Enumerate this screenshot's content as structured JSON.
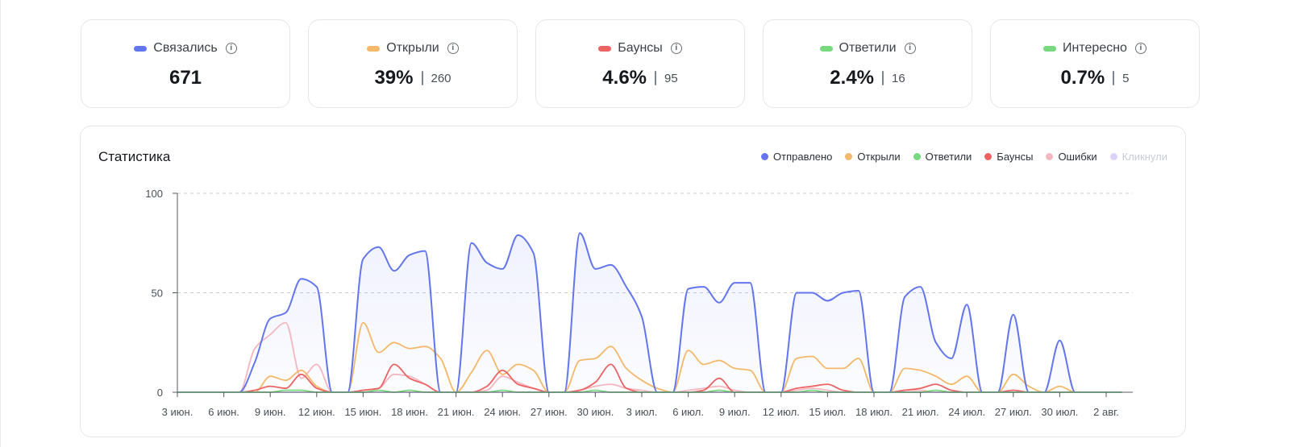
{
  "kpis": [
    {
      "label": "Связались",
      "color": "#6376ee",
      "value": "671",
      "count": ""
    },
    {
      "label": "Открыли",
      "color": "#f3b86a",
      "value": "39%",
      "count": "260"
    },
    {
      "label": "Баунсы",
      "color": "#ec6363",
      "value": "4.6%",
      "count": "95"
    },
    {
      "label": "Ответили",
      "color": "#78d97f",
      "value": "2.4%",
      "count": "16"
    },
    {
      "label": "Интересно",
      "color": "#78d97f",
      "value": "0.7%",
      "count": "5"
    }
  ],
  "info_glyph": "i",
  "chart_data": {
    "type": "area",
    "title": "Статистика",
    "ylim": [
      0,
      100
    ],
    "yticks": [
      "0",
      "50",
      "100"
    ],
    "grid": "dashed horizontal",
    "legend_position": "top-right",
    "x_labels": [
      "3 июн.",
      "6 июн.",
      "9 июн.",
      "12 июн.",
      "15 июн.",
      "18 июн.",
      "21 июн.",
      "24 июн.",
      "27 июн.",
      "30 июн.",
      "3 июл.",
      "6 июл.",
      "9 июл.",
      "12 июл.",
      "15 июл.",
      "18 июл.",
      "21 июл.",
      "24 июл.",
      "27 июл.",
      "30 июл.",
      "2 авг."
    ],
    "series": [
      {
        "name": "Отправлено",
        "color": "#6376ee",
        "fill": true,
        "values": [
          0,
          0,
          0,
          0,
          0,
          15,
          37,
          40,
          57,
          53,
          0,
          0,
          67,
          73,
          61,
          69,
          71,
          0,
          0,
          75,
          65,
          62,
          79,
          70,
          0,
          0,
          80,
          62,
          64,
          53,
          38,
          0,
          0,
          52,
          53,
          45,
          55,
          55,
          0,
          0,
          50,
          50,
          46,
          50,
          51,
          0,
          0,
          48,
          53,
          25,
          17,
          44,
          0,
          0,
          39,
          0,
          0,
          26,
          0,
          0,
          0,
          0
        ]
      },
      {
        "name": "Открыли",
        "color": "#f3b86a",
        "fill": false,
        "values": [
          0,
          0,
          0,
          0,
          0,
          0,
          8,
          6,
          11,
          3,
          0,
          0,
          35,
          20,
          25,
          22,
          23,
          17,
          0,
          10,
          21,
          9,
          14,
          11,
          0,
          0,
          16,
          17,
          23,
          12,
          6,
          2,
          0,
          21,
          14,
          16,
          12,
          11,
          0,
          0,
          17,
          18,
          12,
          12,
          17,
          0,
          0,
          12,
          11,
          8,
          4,
          8,
          0,
          0,
          9,
          3,
          0,
          3,
          0,
          0,
          0,
          0
        ]
      },
      {
        "name": "Ответили",
        "color": "#78d97f",
        "fill": false,
        "values": [
          0,
          0,
          0,
          0,
          0,
          0,
          0,
          1,
          1,
          0,
          0,
          0,
          0,
          1,
          0,
          1,
          0,
          0,
          0,
          0,
          0,
          1,
          0,
          0,
          0,
          0,
          0,
          1,
          0,
          0,
          0,
          0,
          0,
          0,
          0,
          1,
          0,
          0,
          0,
          0,
          0,
          1,
          0,
          0,
          0,
          0,
          0,
          0,
          0,
          1,
          0,
          0,
          0,
          0,
          0,
          0,
          0,
          0,
          0,
          0,
          0,
          0
        ]
      },
      {
        "name": "Баунсы",
        "color": "#ec6363",
        "fill": false,
        "values": [
          0,
          0,
          0,
          0,
          0,
          1,
          3,
          2,
          9,
          2,
          0,
          0,
          1,
          2,
          14,
          7,
          4,
          0,
          0,
          0,
          3,
          11,
          4,
          2,
          0,
          0,
          1,
          5,
          14,
          2,
          0,
          0,
          0,
          0,
          1,
          7,
          0,
          0,
          0,
          0,
          2,
          3,
          4,
          1,
          0,
          0,
          0,
          1,
          2,
          4,
          1,
          0,
          0,
          0,
          1,
          0,
          0,
          0,
          0,
          0,
          0,
          0
        ]
      },
      {
        "name": "Ошибки",
        "color": "#f4b7bf",
        "fill": false,
        "values": [
          0,
          0,
          0,
          0,
          0,
          22,
          29,
          35,
          7,
          14,
          0,
          0,
          1,
          2,
          9,
          8,
          4,
          0,
          0,
          0,
          1,
          8,
          5,
          2,
          0,
          0,
          1,
          3,
          4,
          2,
          1,
          0,
          0,
          1,
          2,
          3,
          1,
          0,
          0,
          0,
          1,
          2,
          1,
          0,
          0,
          0,
          0,
          1,
          1,
          0,
          0,
          0,
          0,
          0,
          0,
          0,
          0,
          0,
          0,
          0,
          0,
          0
        ]
      },
      {
        "name": "Кликнули",
        "color": "#dcd3fa",
        "fill": false,
        "muted": true,
        "values": [
          0,
          0,
          0,
          0,
          0,
          0,
          0,
          0,
          0,
          0,
          0,
          0,
          0,
          0,
          0,
          0,
          0,
          0,
          0,
          0,
          0,
          0,
          0,
          0,
          0,
          0,
          0,
          0,
          0,
          0,
          0,
          0,
          0,
          0,
          0,
          0,
          0,
          0,
          0,
          0,
          0,
          0,
          0,
          0,
          0,
          0,
          0,
          0,
          0,
          0,
          0,
          0,
          0,
          0,
          0,
          0,
          0,
          0,
          0,
          0,
          0,
          0
        ]
      }
    ]
  }
}
